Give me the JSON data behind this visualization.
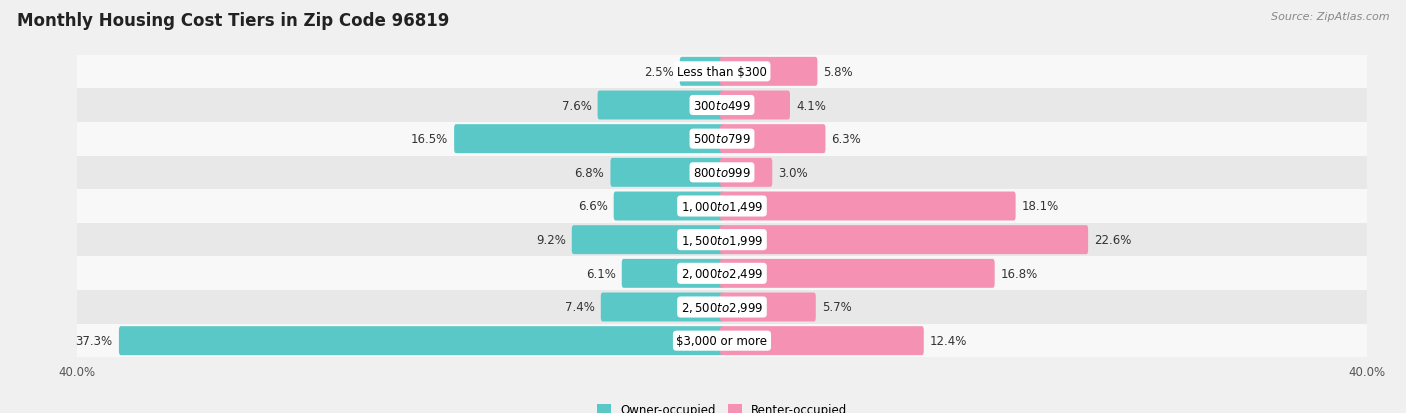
{
  "title": "Monthly Housing Cost Tiers in Zip Code 96819",
  "source": "Source: ZipAtlas.com",
  "categories": [
    "Less than $300",
    "$300 to $499",
    "$500 to $799",
    "$800 to $999",
    "$1,000 to $1,499",
    "$1,500 to $1,999",
    "$2,000 to $2,499",
    "$2,500 to $2,999",
    "$3,000 or more"
  ],
  "owner_values": [
    2.5,
    7.6,
    16.5,
    6.8,
    6.6,
    9.2,
    6.1,
    7.4,
    37.3
  ],
  "renter_values": [
    5.8,
    4.1,
    6.3,
    3.0,
    18.1,
    22.6,
    16.8,
    5.7,
    12.4
  ],
  "owner_color": "#5BC8C8",
  "renter_color": "#F591B2",
  "axis_limit": 40.0,
  "bg_color": "#f0f0f0",
  "row_color_odd": "#e8e8e8",
  "row_color_even": "#f8f8f8",
  "bar_height": 0.62,
  "title_fontsize": 12,
  "label_fontsize": 8.5,
  "source_fontsize": 8,
  "cat_label_fontsize": 8.5,
  "value_fontsize": 8.5
}
